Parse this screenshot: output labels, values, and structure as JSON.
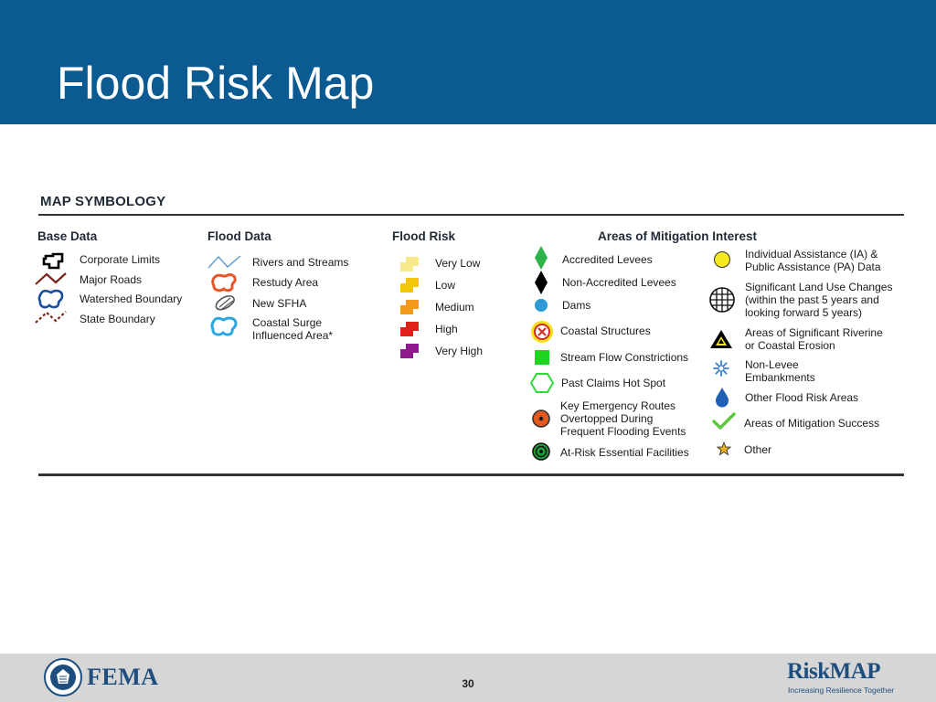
{
  "slide": {
    "title": "Flood Risk Map",
    "page_number": "30"
  },
  "legend": {
    "title": "MAP SYMBOLOGY",
    "base_data": {
      "heading": "Base Data",
      "items": [
        "Corporate Limits",
        "Major Roads",
        "Watershed Boundary",
        "State Boundary"
      ]
    },
    "flood_data": {
      "heading": "Flood Data",
      "items": [
        "Rivers and Streams",
        "Restudy Area",
        "New SFHA",
        "Coastal Surge",
        "Influenced Area*"
      ]
    },
    "flood_risk": {
      "heading": "Flood Risk",
      "items": [
        "Very Low",
        "Low",
        "Medium",
        "High",
        "Very High"
      ],
      "colors": [
        "#f7e98a",
        "#f2c70a",
        "#f39a1b",
        "#e0201b",
        "#8e1a8c"
      ]
    },
    "mitigation": {
      "heading": "Areas of Mitigation Interest",
      "left_items": [
        "Accredited Levees",
        "Non-Accredited Levees",
        "Dams",
        "Coastal Structures",
        "Stream Flow Constrictions",
        "Past Claims Hot Spot",
        "Key Emergency Routes",
        "Overtopped During",
        "Frequent Flooding Events",
        "At-Risk Essential Facilities"
      ],
      "right_items": [
        "Individual Assistance (IA) &",
        "Public Assistance (PA) Data",
        "Significant Land Use Changes",
        "(within the past 5 years and",
        "looking forward 5 years)",
        "Areas of Significant Riverine",
        "or Coastal Erosion",
        "Non-Levee",
        "Embankments",
        "Other Flood Risk Areas",
        "Areas of Mitigation Success",
        "Other"
      ]
    }
  },
  "footer": {
    "agency": "FEMA",
    "brand": "RiskMAP",
    "tagline": "Increasing Resilience Together"
  }
}
